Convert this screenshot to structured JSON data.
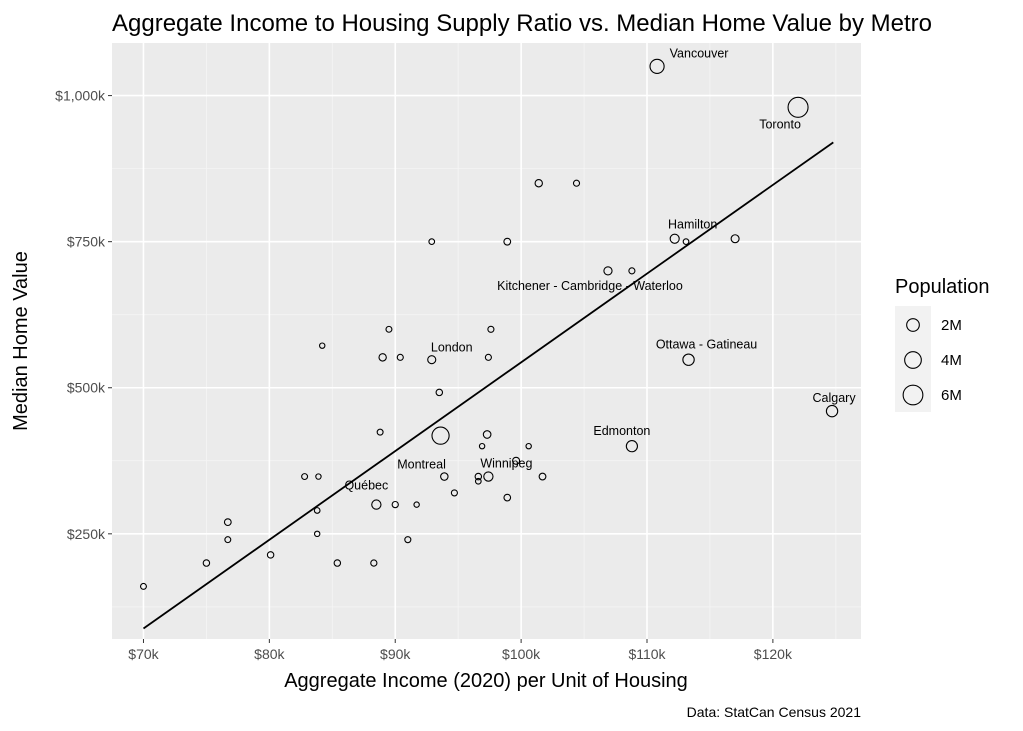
{
  "chart_data": {
    "type": "scatter",
    "title": "Aggregate Income to Housing Supply Ratio vs. Median Home Value by Metro",
    "xlabel": "Aggregate Income (2020) per Unit of Housing",
    "ylabel": "Median Home Value",
    "caption": "Data: StatCan Census 2021",
    "xlim": [
      67500,
      127000
    ],
    "ylim": [
      70000,
      1090000
    ],
    "x_ticks": [
      {
        "value": 70000,
        "label": "$70k"
      },
      {
        "value": 80000,
        "label": "$80k"
      },
      {
        "value": 90000,
        "label": "$90k"
      },
      {
        "value": 100000,
        "label": "$100k"
      },
      {
        "value": 110000,
        "label": "$110k"
      },
      {
        "value": 120000,
        "label": "$120k"
      }
    ],
    "y_ticks": [
      {
        "value": 250000,
        "label": "$250k"
      },
      {
        "value": 500000,
        "label": "$500k"
      },
      {
        "value": 750000,
        "label": "$750k"
      },
      {
        "value": 1000000,
        "label": "$1,000k"
      }
    ],
    "grid": true,
    "size_variable": "Population",
    "legend": {
      "title": "Population",
      "position": "right",
      "entries": [
        {
          "label": "2M",
          "population": 2000000
        },
        {
          "label": "4M",
          "population": 4000000
        },
        {
          "label": "6M",
          "population": 6000000
        }
      ]
    },
    "trend_line": {
      "x": [
        70000,
        124800
      ],
      "y": [
        88000,
        920000
      ]
    },
    "points": [
      {
        "x": 122000,
        "y": 980000,
        "population": 6200000,
        "label": "Toronto"
      },
      {
        "x": 110800,
        "y": 1050000,
        "population": 2640000,
        "label": "Vancouver"
      },
      {
        "x": 93600,
        "y": 418000,
        "population": 4290000,
        "label": "Montreal"
      },
      {
        "x": 124700,
        "y": 460000,
        "population": 1480000,
        "label": "Calgary"
      },
      {
        "x": 108800,
        "y": 400000,
        "population": 1420000,
        "label": "Edmonton"
      },
      {
        "x": 113300,
        "y": 548000,
        "population": 1490000,
        "label": "Ottawa - Gatineau"
      },
      {
        "x": 97400,
        "y": 348000,
        "population": 834000,
        "label": "Winnipeg"
      },
      {
        "x": 88500,
        "y": 300000,
        "population": 839000,
        "label": "Québec"
      },
      {
        "x": 112200,
        "y": 755000,
        "population": 785000,
        "label": "Hamilton"
      },
      {
        "x": 106900,
        "y": 700000,
        "population": 575000,
        "label": "Kitchener - Cambridge - Waterloo"
      },
      {
        "x": 92900,
        "y": 548000,
        "population": 544000,
        "label": "London"
      },
      {
        "x": 117000,
        "y": 755000,
        "population": 530000
      },
      {
        "x": 101400,
        "y": 850000,
        "population": 400000
      },
      {
        "x": 104400,
        "y": 850000,
        "population": 200000
      },
      {
        "x": 98900,
        "y": 750000,
        "population": 300000
      },
      {
        "x": 92900,
        "y": 750000,
        "population": 150000
      },
      {
        "x": 108800,
        "y": 700000,
        "population": 200000
      },
      {
        "x": 113100,
        "y": 750000,
        "population": 150000
      },
      {
        "x": 97600,
        "y": 600000,
        "population": 200000
      },
      {
        "x": 89500,
        "y": 600000,
        "population": 180000
      },
      {
        "x": 84200,
        "y": 572000,
        "population": 120000
      },
      {
        "x": 89000,
        "y": 552000,
        "population": 400000
      },
      {
        "x": 90400,
        "y": 552000,
        "population": 200000
      },
      {
        "x": 97400,
        "y": 552000,
        "population": 200000
      },
      {
        "x": 93500,
        "y": 492000,
        "population": 250000
      },
      {
        "x": 88800,
        "y": 424000,
        "population": 180000
      },
      {
        "x": 97300,
        "y": 420000,
        "population": 450000
      },
      {
        "x": 96900,
        "y": 400000,
        "population": 120000
      },
      {
        "x": 100600,
        "y": 400000,
        "population": 120000
      },
      {
        "x": 99600,
        "y": 375000,
        "population": 350000
      },
      {
        "x": 93900,
        "y": 348000,
        "population": 420000
      },
      {
        "x": 96600,
        "y": 348000,
        "population": 250000
      },
      {
        "x": 101700,
        "y": 348000,
        "population": 300000
      },
      {
        "x": 96600,
        "y": 340000,
        "population": 150000
      },
      {
        "x": 82800,
        "y": 348000,
        "population": 180000
      },
      {
        "x": 83900,
        "y": 348000,
        "population": 120000
      },
      {
        "x": 94700,
        "y": 320000,
        "population": 200000
      },
      {
        "x": 98900,
        "y": 312000,
        "population": 280000
      },
      {
        "x": 90000,
        "y": 300000,
        "population": 220000
      },
      {
        "x": 91700,
        "y": 300000,
        "population": 120000
      },
      {
        "x": 83800,
        "y": 290000,
        "population": 150000
      },
      {
        "x": 76700,
        "y": 270000,
        "population": 300000
      },
      {
        "x": 76700,
        "y": 240000,
        "population": 180000
      },
      {
        "x": 83800,
        "y": 250000,
        "population": 120000
      },
      {
        "x": 91000,
        "y": 240000,
        "population": 200000
      },
      {
        "x": 80100,
        "y": 214000,
        "population": 250000
      },
      {
        "x": 75000,
        "y": 200000,
        "population": 250000
      },
      {
        "x": 85400,
        "y": 200000,
        "population": 250000
      },
      {
        "x": 88300,
        "y": 200000,
        "population": 220000
      },
      {
        "x": 70000,
        "y": 160000,
        "population": 180000
      }
    ]
  }
}
